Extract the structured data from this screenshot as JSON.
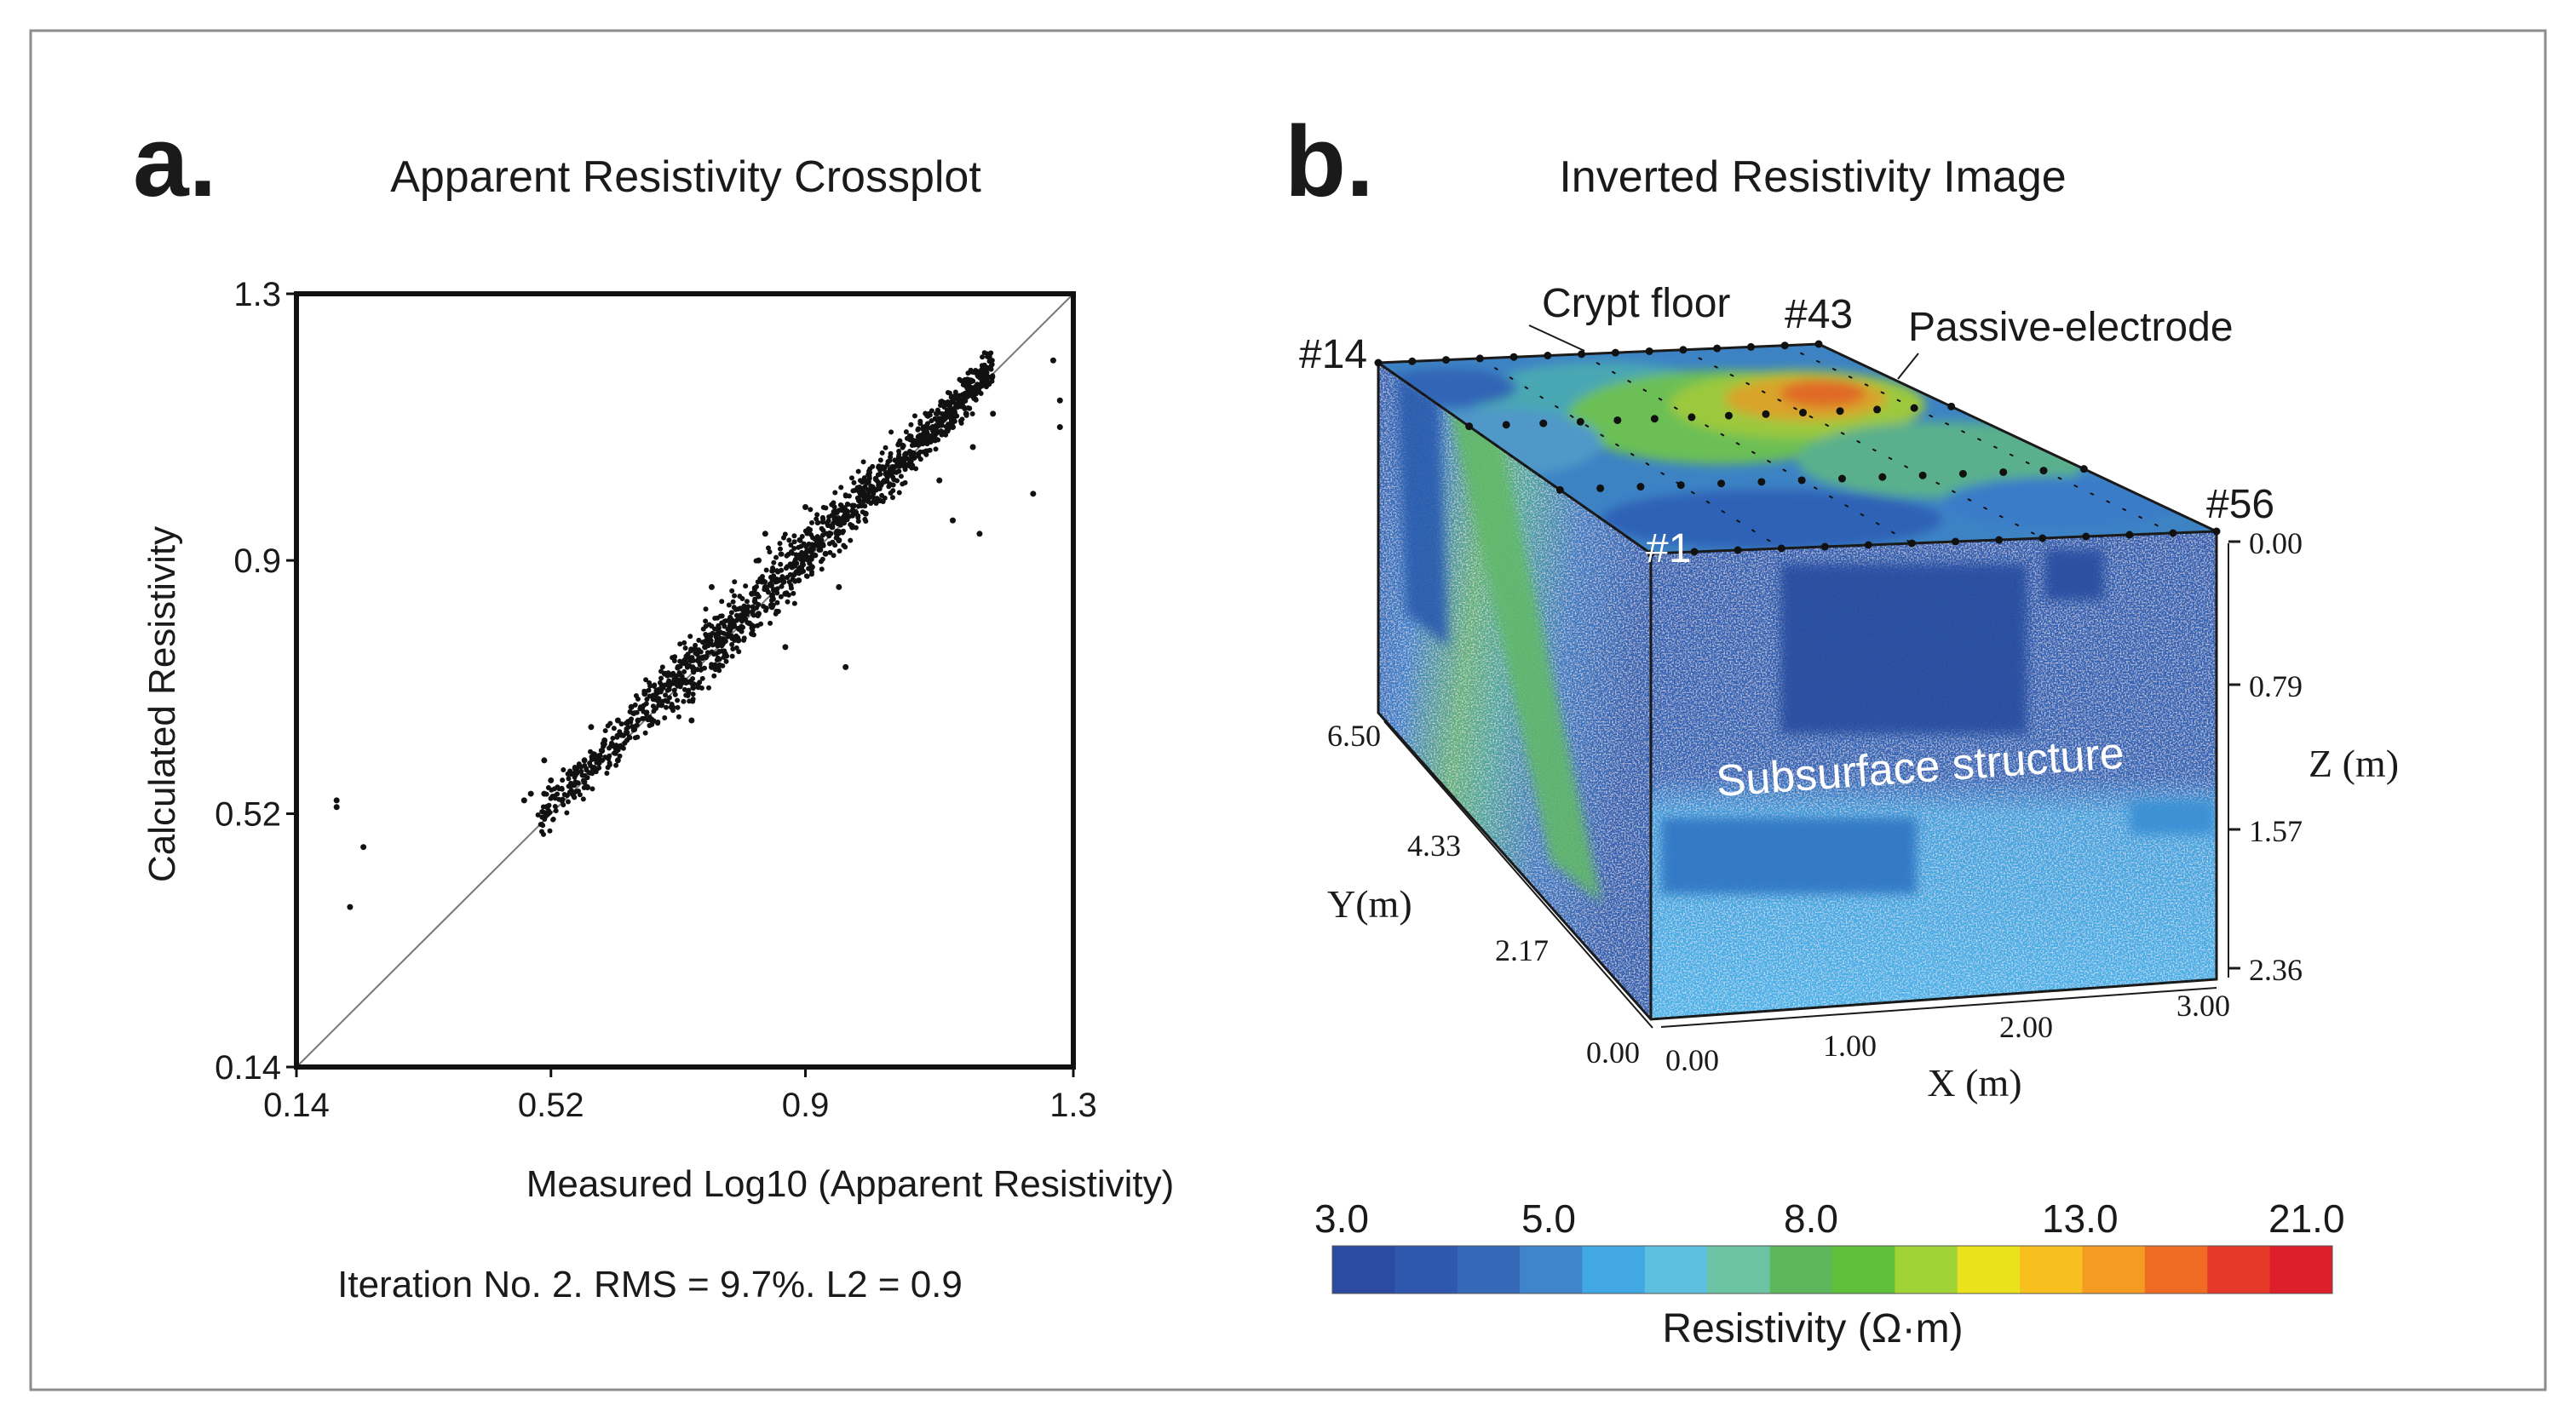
{
  "panel_a": {
    "letter": "a.",
    "title": "Apparent Resistivity Crossplot",
    "footer": "Iteration No. 2. RMS = 9.7%. L2 = 0.9"
  },
  "panel_b": {
    "letter": "b.",
    "title": "Inverted Resistivity Image",
    "annotations": {
      "crypt_floor": "Crypt floor",
      "passive_electrode": "Passive-electrode",
      "subsurface": "Subsurface structure",
      "e14": "#14",
      "e43": "#43",
      "e56": "#56",
      "e1": "#1"
    },
    "axes": {
      "x_label": "X (m)",
      "x_ticks": [
        "0.00",
        "1.00",
        "2.00",
        "3.00"
      ],
      "y_label": "Y(m)",
      "y_ticks": [
        "0.00",
        "2.17",
        "4.33",
        "6.50"
      ],
      "z_label": "Z (m)",
      "z_ticks": [
        "0.00",
        "0.79",
        "1.57",
        "2.36"
      ]
    },
    "colorbar": {
      "label": "Resistivity (Ω·m)",
      "tick_labels": [
        "3.0",
        "5.0",
        "8.0",
        "13.0",
        "21.0"
      ],
      "colors": [
        "#2b4aa0",
        "#2f57ad",
        "#3569b8",
        "#3f85cc",
        "#41a8e4",
        "#5ec0e0",
        "#6cc4a4",
        "#5cb85a",
        "#5fbe3a",
        "#9fd336",
        "#e9e21c",
        "#f8c01e",
        "#f59a22",
        "#ef6a22",
        "#e6392a",
        "#dc1f2b"
      ]
    }
  },
  "chart_data": [
    {
      "type": "scatter",
      "title": "Apparent Resistivity Crossplot",
      "xlabel": "Measured Log10 (Apparent Resistivity)",
      "ylabel": "Calculated Resistivity",
      "xlim": [
        0.14,
        1.3
      ],
      "ylim": [
        0.14,
        1.3
      ],
      "x_ticks": [
        0.14,
        0.52,
        0.9,
        1.3
      ],
      "y_ticks": [
        0.14,
        0.52,
        0.9,
        1.3
      ],
      "x_tick_labels": [
        "0.14",
        "0.52",
        "0.9",
        "1.3"
      ],
      "y_tick_labels": [
        "0.14",
        "0.52",
        "0.9",
        "1.3"
      ],
      "reference_line": "y = x",
      "note": "About 1400 dense points cluster tightly along y = x between 0.5 and 1.2; representative points listed.",
      "points": [
        [
          0.2,
          0.54
        ],
        [
          0.2,
          0.53
        ],
        [
          0.24,
          0.47
        ],
        [
          0.22,
          0.38
        ],
        [
          0.48,
          0.54
        ],
        [
          0.49,
          0.55
        ],
        [
          0.51,
          0.55
        ],
        [
          0.51,
          0.6
        ],
        [
          0.52,
          0.57
        ],
        [
          0.55,
          0.58
        ],
        [
          0.57,
          0.6
        ],
        [
          0.58,
          0.65
        ],
        [
          0.6,
          0.63
        ],
        [
          0.62,
          0.6
        ],
        [
          0.62,
          0.66
        ],
        [
          0.64,
          0.68
        ],
        [
          0.65,
          0.66
        ],
        [
          0.66,
          0.7
        ],
        [
          0.68,
          0.69
        ],
        [
          0.69,
          0.73
        ],
        [
          0.7,
          0.68
        ],
        [
          0.71,
          0.74
        ],
        [
          0.72,
          0.72
        ],
        [
          0.73,
          0.75
        ],
        [
          0.74,
          0.71
        ],
        [
          0.75,
          0.77
        ],
        [
          0.76,
          0.74
        ],
        [
          0.77,
          0.79
        ],
        [
          0.78,
          0.76
        ],
        [
          0.79,
          0.8
        ],
        [
          0.8,
          0.78
        ],
        [
          0.81,
          0.82
        ],
        [
          0.82,
          0.79
        ],
        [
          0.82,
          0.85
        ],
        [
          0.83,
          0.82
        ],
        [
          0.84,
          0.86
        ],
        [
          0.85,
          0.83
        ],
        [
          0.86,
          0.87
        ],
        [
          0.87,
          0.85
        ],
        [
          0.88,
          0.89
        ],
        [
          0.89,
          0.87
        ],
        [
          0.9,
          0.91
        ],
        [
          0.91,
          0.89
        ],
        [
          0.92,
          0.93
        ],
        [
          0.93,
          0.91
        ],
        [
          0.94,
          0.95
        ],
        [
          0.95,
          0.93
        ],
        [
          0.96,
          0.97
        ],
        [
          0.97,
          0.95
        ],
        [
          0.98,
          0.99
        ],
        [
          0.99,
          0.97
        ],
        [
          1.0,
          1.01
        ],
        [
          1.01,
          0.99
        ],
        [
          1.02,
          1.03
        ],
        [
          1.03,
          1.04
        ],
        [
          1.04,
          1.05
        ],
        [
          1.05,
          1.06
        ],
        [
          1.06,
          1.08
        ],
        [
          1.08,
          1.08
        ],
        [
          1.09,
          1.1
        ],
        [
          1.1,
          1.11
        ],
        [
          1.1,
          1.02
        ],
        [
          1.11,
          1.12
        ],
        [
          1.12,
          1.1
        ],
        [
          1.13,
          1.14
        ],
        [
          1.14,
          1.12
        ],
        [
          1.15,
          1.15
        ],
        [
          1.15,
          1.07
        ],
        [
          0.76,
          0.86
        ],
        [
          0.84,
          0.94
        ],
        [
          0.9,
          0.98
        ],
        [
          0.95,
          0.86
        ],
        [
          0.87,
          0.77
        ],
        [
          0.96,
          0.74
        ],
        [
          0.83,
          0.9
        ],
        [
          0.73,
          0.66
        ],
        [
          1.12,
          0.96
        ],
        [
          1.16,
          0.94
        ],
        [
          1.24,
          1.0
        ],
        [
          1.28,
          1.1
        ],
        [
          1.28,
          1.14
        ],
        [
          1.27,
          1.2
        ],
        [
          1.18,
          1.12
        ]
      ]
    },
    {
      "type": "heatmap",
      "title": "Inverted Resistivity Image",
      "xlabel": "X (m)",
      "ylabel": "Y(m)",
      "zlabel": "Z (m)",
      "xlim": [
        0.0,
        3.0
      ],
      "ylim": [
        0.0,
        6.5
      ],
      "zlim": [
        0.0,
        2.36
      ],
      "colorbar_range": [
        3.0,
        21.0
      ],
      "colorbar_label": "Resistivity (Ω·m)",
      "colorbar_ticks": [
        3.0,
        5.0,
        8.0,
        13.0,
        21.0
      ]
    }
  ]
}
